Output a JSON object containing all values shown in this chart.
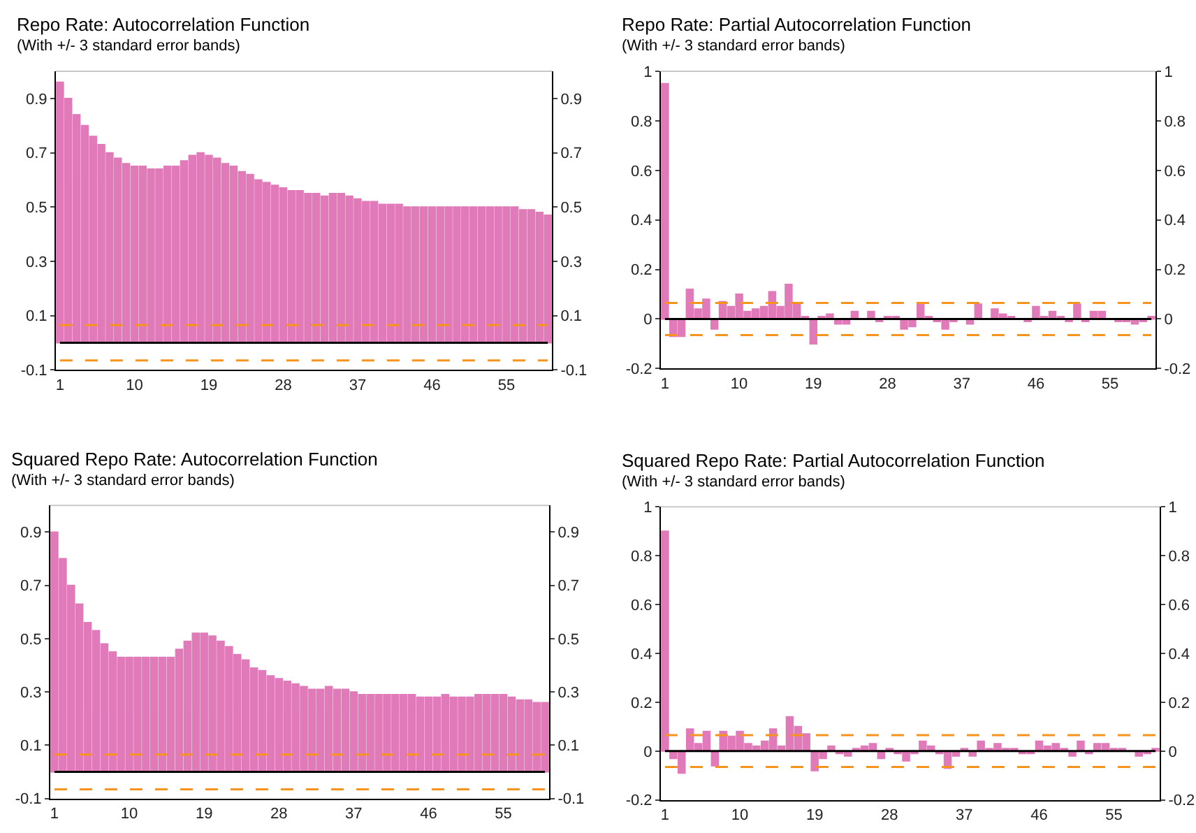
{
  "chart_data": [
    {
      "type": "bar",
      "title": "Repo Rate: Autocorrelation Function",
      "subtitle": "(With +/- 3 standard error bands)",
      "color": "#e07ab8",
      "x": [
        1,
        2,
        3,
        4,
        5,
        6,
        7,
        8,
        9,
        10,
        11,
        12,
        13,
        14,
        15,
        16,
        17,
        18,
        19,
        20,
        21,
        22,
        23,
        24,
        25,
        26,
        27,
        28,
        29,
        30,
        31,
        32,
        33,
        34,
        35,
        36,
        37,
        38,
        39,
        40,
        41,
        42,
        43,
        44,
        45,
        46,
        47,
        48,
        49,
        50,
        51,
        52,
        53,
        54,
        55,
        56,
        57,
        58,
        59,
        60
      ],
      "values": [
        0.96,
        0.9,
        0.84,
        0.8,
        0.76,
        0.73,
        0.7,
        0.68,
        0.66,
        0.65,
        0.65,
        0.64,
        0.64,
        0.65,
        0.65,
        0.67,
        0.69,
        0.7,
        0.69,
        0.68,
        0.66,
        0.65,
        0.63,
        0.62,
        0.6,
        0.59,
        0.58,
        0.57,
        0.56,
        0.56,
        0.55,
        0.55,
        0.54,
        0.55,
        0.55,
        0.54,
        0.53,
        0.52,
        0.52,
        0.51,
        0.51,
        0.51,
        0.5,
        0.5,
        0.5,
        0.5,
        0.5,
        0.5,
        0.5,
        0.5,
        0.5,
        0.5,
        0.5,
        0.5,
        0.5,
        0.5,
        0.49,
        0.49,
        0.48,
        0.47
      ],
      "xlim": [
        0.5,
        60.5
      ],
      "xticks": [
        1,
        10,
        19,
        28,
        37,
        46,
        55
      ],
      "ylim": [
        -0.1,
        1.0
      ],
      "yticks": [
        -0.1,
        0.1,
        0.3,
        0.5,
        0.7,
        0.9
      ],
      "y2lim": [
        -0.1,
        1.0
      ],
      "y2ticks": [
        -0.1,
        0.1,
        0.3,
        0.5,
        0.7,
        0.9
      ],
      "ref_lines": [
        {
          "axis": "y",
          "value": 0,
          "color": "#000000",
          "line_style": "solid"
        },
        {
          "axis": "y",
          "value": 0.065,
          "color": "#f7941d",
          "line_style": "dashed"
        },
        {
          "axis": "y",
          "value": -0.065,
          "color": "#f7941d",
          "line_style": "dashed"
        }
      ]
    },
    {
      "type": "bar",
      "title": "Repo Rate: Partial Autocorrelation Function",
      "subtitle": "(With +/- 3 standard error bands)",
      "color": "#e07ab8",
      "x": [
        1,
        2,
        3,
        4,
        5,
        6,
        7,
        8,
        9,
        10,
        11,
        12,
        13,
        14,
        15,
        16,
        17,
        18,
        19,
        20,
        21,
        22,
        23,
        24,
        25,
        26,
        27,
        28,
        29,
        30,
        31,
        32,
        33,
        34,
        35,
        36,
        37,
        38,
        39,
        40,
        41,
        42,
        43,
        44,
        45,
        46,
        47,
        48,
        49,
        50,
        51,
        52,
        53,
        54,
        55,
        56,
        57,
        58,
        59,
        60
      ],
      "values": [
        0.95,
        -0.07,
        -0.07,
        0.12,
        0.04,
        0.08,
        -0.04,
        0.07,
        0.05,
        0.1,
        0.03,
        0.04,
        0.05,
        0.11,
        0.05,
        0.14,
        0.06,
        0.01,
        -0.1,
        0.01,
        0.02,
        -0.02,
        -0.02,
        0.03,
        0.0,
        0.03,
        -0.01,
        0.01,
        0.01,
        -0.04,
        -0.03,
        0.06,
        0.01,
        -0.01,
        -0.04,
        -0.01,
        0.0,
        -0.02,
        0.06,
        0.0,
        0.04,
        0.02,
        0.01,
        0.0,
        -0.01,
        0.05,
        0.01,
        0.03,
        0.01,
        -0.01,
        0.06,
        -0.01,
        0.03,
        0.03,
        0.0,
        -0.01,
        -0.01,
        -0.02,
        -0.01,
        0.01
      ],
      "xlim": [
        0.5,
        60.5
      ],
      "xticks": [
        1,
        10,
        19,
        28,
        37,
        46,
        55
      ],
      "ylim": [
        -0.2,
        1.0
      ],
      "yticks": [
        -0.2,
        0,
        0.2,
        0.4,
        0.6,
        0.8,
        1
      ],
      "y2lim": [
        -0.2,
        1.0
      ],
      "y2ticks": [
        -0.2,
        0,
        0.2,
        0.4,
        0.6,
        0.8,
        1
      ],
      "ref_lines": [
        {
          "axis": "y",
          "value": 0,
          "color": "#000000",
          "line_style": "solid"
        },
        {
          "axis": "y",
          "value": 0.065,
          "color": "#f7941d",
          "line_style": "dashed"
        },
        {
          "axis": "y",
          "value": -0.065,
          "color": "#f7941d",
          "line_style": "dashed"
        }
      ]
    },
    {
      "type": "bar",
      "title": "Squared Repo Rate: Autocorrelation Function",
      "subtitle": "(With +/- 3 standard error bands)",
      "color": "#e07ab8",
      "x": [
        1,
        2,
        3,
        4,
        5,
        6,
        7,
        8,
        9,
        10,
        11,
        12,
        13,
        14,
        15,
        16,
        17,
        18,
        19,
        20,
        21,
        22,
        23,
        24,
        25,
        26,
        27,
        28,
        29,
        30,
        31,
        32,
        33,
        34,
        35,
        36,
        37,
        38,
        39,
        40,
        41,
        42,
        43,
        44,
        45,
        46,
        47,
        48,
        49,
        50,
        51,
        52,
        53,
        54,
        55,
        56,
        57,
        58,
        59,
        60
      ],
      "values": [
        0.9,
        0.8,
        0.7,
        0.63,
        0.56,
        0.53,
        0.48,
        0.45,
        0.43,
        0.43,
        0.43,
        0.43,
        0.43,
        0.43,
        0.43,
        0.46,
        0.49,
        0.52,
        0.52,
        0.51,
        0.49,
        0.47,
        0.44,
        0.42,
        0.39,
        0.38,
        0.36,
        0.35,
        0.34,
        0.33,
        0.32,
        0.31,
        0.31,
        0.32,
        0.31,
        0.31,
        0.3,
        0.29,
        0.29,
        0.29,
        0.29,
        0.29,
        0.29,
        0.29,
        0.28,
        0.28,
        0.28,
        0.29,
        0.28,
        0.28,
        0.28,
        0.29,
        0.29,
        0.29,
        0.29,
        0.28,
        0.27,
        0.27,
        0.26,
        0.26
      ],
      "xlim": [
        0.5,
        60.5
      ],
      "xticks": [
        1,
        10,
        19,
        28,
        37,
        46,
        55
      ],
      "ylim": [
        -0.1,
        1.0
      ],
      "yticks": [
        -0.1,
        0.1,
        0.3,
        0.5,
        0.7,
        0.9
      ],
      "y2lim": [
        -0.1,
        1.0
      ],
      "y2ticks": [
        -0.1,
        0.1,
        0.3,
        0.5,
        0.7,
        0.9
      ],
      "ref_lines": [
        {
          "axis": "y",
          "value": 0,
          "color": "#000000",
          "line_style": "solid"
        },
        {
          "axis": "y",
          "value": 0.065,
          "color": "#f7941d",
          "line_style": "dashed"
        },
        {
          "axis": "y",
          "value": -0.065,
          "color": "#f7941d",
          "line_style": "dashed"
        }
      ]
    },
    {
      "type": "bar",
      "title": "Squared Repo Rate: Partial Autocorrelation Function",
      "subtitle": "(With +/- 3 standard error bands)",
      "color": "#e07ab8",
      "x": [
        1,
        2,
        3,
        4,
        5,
        6,
        7,
        8,
        9,
        10,
        11,
        12,
        13,
        14,
        15,
        16,
        17,
        18,
        19,
        20,
        21,
        22,
        23,
        24,
        25,
        26,
        27,
        28,
        29,
        30,
        31,
        32,
        33,
        34,
        35,
        36,
        37,
        38,
        39,
        40,
        41,
        42,
        43,
        44,
        45,
        46,
        47,
        48,
        49,
        50,
        51,
        52,
        53,
        54,
        55,
        56,
        57,
        58,
        59,
        60
      ],
      "values": [
        0.9,
        -0.03,
        -0.09,
        0.09,
        0.03,
        0.08,
        -0.06,
        0.08,
        0.06,
        0.08,
        0.03,
        0.02,
        0.04,
        0.09,
        0.02,
        0.14,
        0.1,
        0.07,
        -0.08,
        -0.03,
        0.02,
        -0.01,
        -0.02,
        0.01,
        0.02,
        0.03,
        -0.03,
        0.01,
        -0.01,
        -0.04,
        -0.01,
        0.04,
        0.02,
        -0.01,
        -0.07,
        -0.02,
        0.01,
        -0.02,
        0.04,
        0.01,
        0.03,
        0.01,
        0.01,
        -0.01,
        -0.01,
        0.04,
        0.02,
        0.03,
        0.01,
        -0.02,
        0.04,
        -0.01,
        0.03,
        0.03,
        0.01,
        0.01,
        0.0,
        -0.02,
        -0.01,
        0.01
      ],
      "xlim": [
        0.5,
        60.5
      ],
      "xticks": [
        1,
        10,
        19,
        28,
        37,
        46,
        55
      ],
      "ylim": [
        -0.2,
        1.0
      ],
      "yticks": [
        -0.2,
        0,
        0.2,
        0.4,
        0.6,
        0.8,
        1
      ],
      "y2lim": [
        -0.2,
        1.0
      ],
      "y2ticks": [
        -0.2,
        0,
        0.2,
        0.4,
        0.6,
        0.8,
        1
      ],
      "ref_lines": [
        {
          "axis": "y",
          "value": 0,
          "color": "#000000",
          "line_style": "solid"
        },
        {
          "axis": "y",
          "value": 0.065,
          "color": "#f7941d",
          "line_style": "dashed"
        },
        {
          "axis": "y",
          "value": -0.065,
          "color": "#f7941d",
          "line_style": "dashed"
        }
      ]
    }
  ]
}
